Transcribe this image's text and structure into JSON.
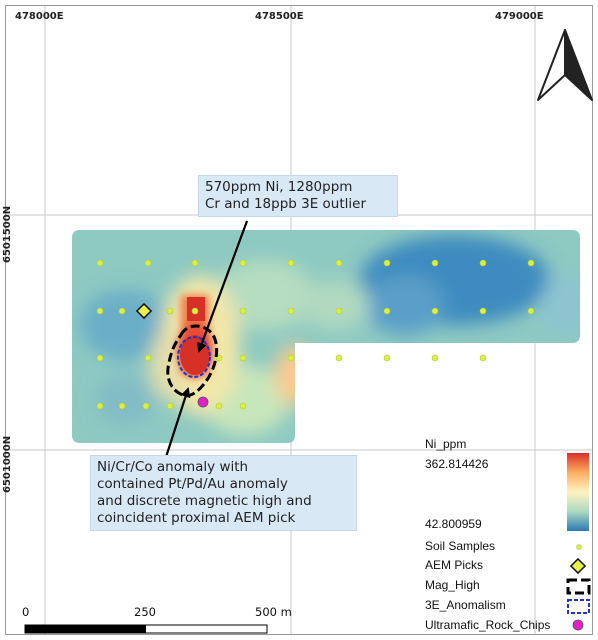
{
  "grid_labels": {
    "easting": [
      "478000E",
      "478500E",
      "479000E"
    ],
    "northing": [
      "6501500N",
      "6501000N"
    ]
  },
  "callouts": {
    "outlier": "570ppm Ni, 1280ppm\nCr and 18ppb 3E outlier",
    "anomaly": "Ni/Cr/Co anomaly with\ncontained Pt/Pd/Au anomaly\nand discrete magnetic high and\ncoincident proximal AEM pick"
  },
  "legend": {
    "title": "Ni_ppm",
    "max_value": "362.814426",
    "min_value": "42.800959",
    "items": [
      "Soil Samples",
      "AEM Picks",
      "Mag_High",
      "3E_Anomalism",
      "Ultramafic_Rock_Chips"
    ]
  },
  "scale_bar": {
    "labels": [
      "0",
      "250",
      "500 m"
    ]
  },
  "colors": {
    "ni_high": "#d73027",
    "ni_mid": "#fff2c0",
    "ni_low": "#2c7bb6",
    "soil_sample": "#d8f045",
    "aem_pick": "#e8f04a",
    "rock_chip": "#e020c8",
    "anomalism_outline": "#2233cc",
    "callout_bg": "#d9e8f5"
  }
}
